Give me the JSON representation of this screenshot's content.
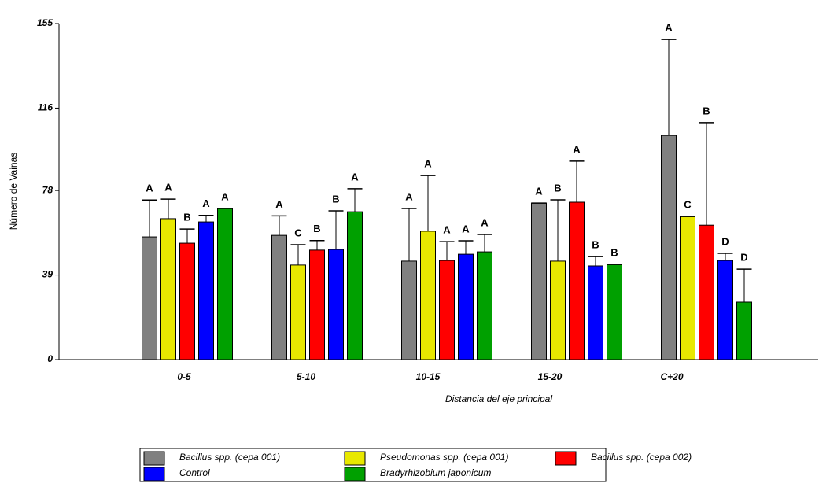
{
  "chart_data": {
    "type": "bar",
    "x_label": "Distancia del eje principal",
    "y_label": "Número de Vainas",
    "categories": [
      "0-5",
      "5-10",
      "10-15",
      "15-20",
      "C+20"
    ],
    "ylim": [
      0,
      155
    ],
    "yticks": [
      0,
      39,
      78,
      116,
      155
    ],
    "series": [
      {
        "name": "Bacillus spp. (cepa 001)",
        "color": "#808080",
        "values": [
          56.6,
          57.3,
          45.4,
          72.2,
          103.4
        ],
        "errors": [
          17,
          9,
          24.3,
          0,
          44.3
        ],
        "letters": [
          "A",
          "A",
          "A",
          "A",
          "A"
        ]
      },
      {
        "name": "Pseudomonas spp. (cepa 001)",
        "color": "#e8e800",
        "values": [
          65,
          43.6,
          59.2,
          45.4,
          66
        ],
        "errors": [
          9,
          9.4,
          25.7,
          28.3,
          0
        ],
        "letters": [
          "A",
          "C",
          "A",
          "B",
          "C"
        ]
      },
      {
        "name": "Bacillus spp. (cepa 002)",
        "color": "#ff0000",
        "values": [
          53.7,
          50.5,
          45.7,
          72.6,
          62
        ],
        "errors": [
          6.5,
          4.4,
          8.7,
          18.9,
          47.3
        ],
        "letters": [
          "B",
          "B",
          "A",
          "A",
          "B"
        ]
      },
      {
        "name": "Control",
        "color": "#0000ff",
        "values": [
          63.5,
          50.8,
          48.6,
          43.2,
          45.7
        ],
        "errors": [
          3,
          17.8,
          6.2,
          4.3,
          3.3
        ],
        "letters": [
          "A",
          "B",
          "A",
          "B",
          "D"
        ]
      },
      {
        "name": "Bradyrhizobium japonicum",
        "color": "#00a000",
        "values": [
          69.7,
          68.2,
          49.7,
          43.9,
          26.5
        ],
        "errors": [
          0,
          10.6,
          8,
          0,
          15.2
        ],
        "letters": [
          "A",
          "A",
          "A",
          "B",
          "D"
        ]
      }
    ]
  }
}
